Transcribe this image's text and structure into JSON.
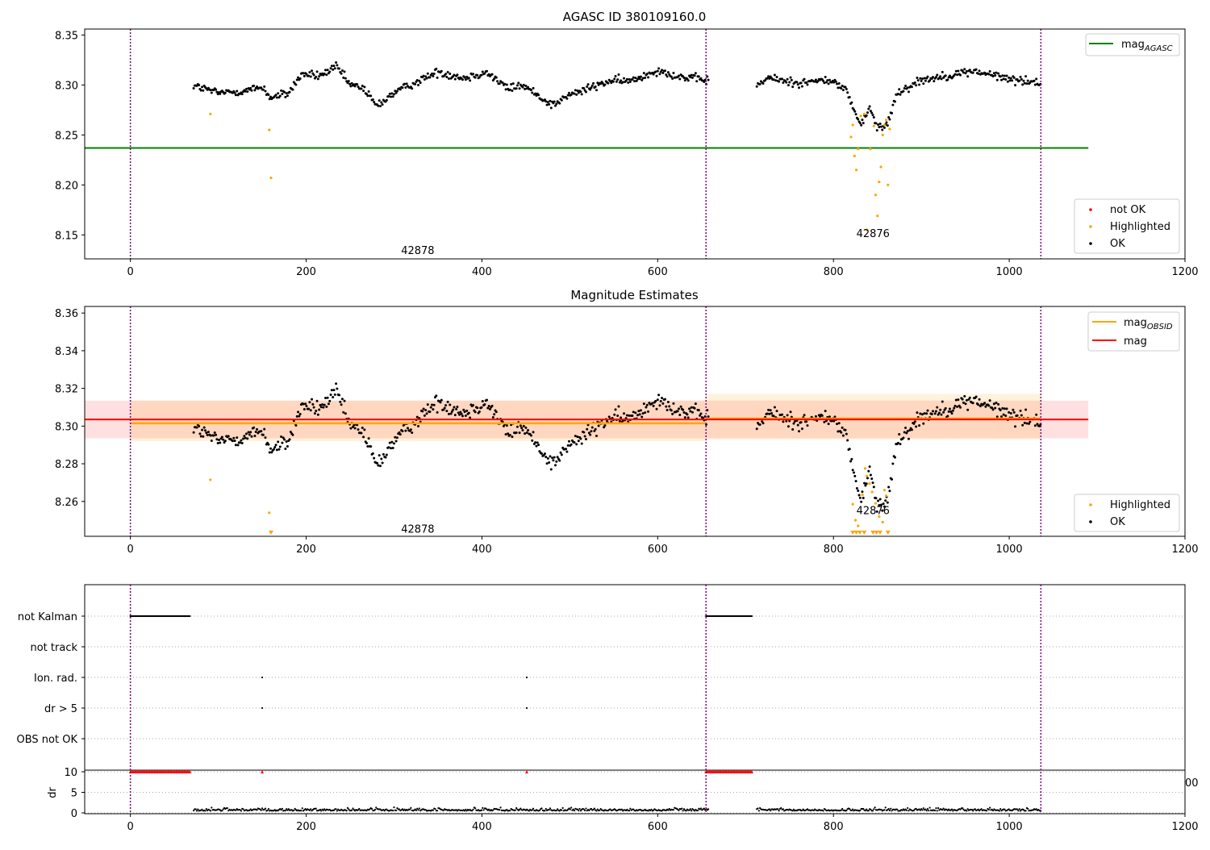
{
  "chart_data": [
    {
      "type": "scatter",
      "title": "AGASC ID 380109160.0",
      "xlim": [
        -52,
        1200
      ],
      "ylim": [
        8.126,
        8.356
      ],
      "xticks": [
        0,
        200,
        400,
        600,
        800,
        1000,
        1200
      ],
      "yticks": [
        8.15,
        8.2,
        8.25,
        8.3,
        8.35
      ],
      "ytick_labels": [
        "8.15",
        "8.20",
        "8.25",
        "8.30",
        "8.35"
      ],
      "obs_boundaries": [
        0,
        655,
        1036
      ],
      "obs_labels": [
        {
          "text": "42878",
          "x": 327,
          "y": 8.135
        },
        {
          "text": "42876",
          "x": 845,
          "y": 8.152
        }
      ],
      "hlines": [
        {
          "name": "mag_AGASC",
          "y": 8.237,
          "x0": -52,
          "x1": 1090,
          "color": "#008000"
        }
      ],
      "legend_top": [
        {
          "label": "mag",
          "sub": "AGASC",
          "color": "#008000"
        }
      ],
      "legend_bottom": [
        {
          "label": "not OK",
          "color": "#ff0000"
        },
        {
          "label": "Highlighted",
          "color": "#ffa500"
        },
        {
          "label": "OK",
          "color": "#000000"
        }
      ],
      "highlighted": [
        [
          91,
          8.271
        ],
        [
          158,
          8.255
        ],
        [
          160,
          8.207
        ],
        [
          820,
          8.248
        ],
        [
          822,
          8.26
        ],
        [
          824,
          8.229
        ],
        [
          826,
          8.215
        ],
        [
          828,
          8.236
        ],
        [
          831,
          8.269
        ],
        [
          835,
          8.271
        ],
        [
          838,
          8.155
        ],
        [
          842,
          8.236
        ],
        [
          846,
          8.259
        ],
        [
          848,
          8.19
        ],
        [
          850,
          8.169
        ],
        [
          852,
          8.203
        ],
        [
          854,
          8.218
        ],
        [
          856,
          8.25
        ],
        [
          858,
          8.26
        ],
        [
          860,
          8.265
        ],
        [
          862,
          8.2
        ],
        [
          864,
          8.256
        ]
      ]
    },
    {
      "type": "scatter",
      "title": "Magnitude Estimates",
      "xlim": [
        -52,
        1200
      ],
      "ylim": [
        8.2415,
        8.3635
      ],
      "xticks": [
        0,
        200,
        400,
        600,
        800,
        1000,
        1200
      ],
      "yticks": [
        8.26,
        8.28,
        8.3,
        8.32,
        8.34,
        8.36
      ],
      "ytick_labels": [
        "8.26",
        "8.28",
        "8.30",
        "8.32",
        "8.34",
        "8.36"
      ],
      "obs_boundaries": [
        0,
        655,
        1036
      ],
      "obs_labels": [
        {
          "text": "42878",
          "x": 327,
          "y": 8.2455
        },
        {
          "text": "42876",
          "x": 845,
          "y": 8.2555
        }
      ],
      "mag": {
        "value": 8.3035,
        "band": [
          8.2935,
          8.3135
        ],
        "color": "#ff0000"
      },
      "mag_obsid": [
        {
          "x0": 0,
          "x1": 655,
          "value": 8.3015,
          "band": [
            8.292,
            8.3135
          ]
        },
        {
          "x0": 655,
          "x1": 1036,
          "value": 8.304,
          "band": [
            8.293,
            8.317
          ]
        }
      ],
      "legend_top": [
        {
          "label": "mag",
          "sub": "OBSID",
          "color": "#ffa500"
        },
        {
          "label": "mag",
          "sub": "",
          "color": "#ff0000"
        }
      ],
      "legend_bottom": [
        {
          "label": "Highlighted",
          "color": "#ffa500"
        },
        {
          "label": "OK",
          "color": "#000000"
        }
      ],
      "highlighted": [
        [
          91,
          8.2715
        ],
        [
          158,
          8.254
        ],
        [
          822,
          8.2585
        ],
        [
          825,
          8.25
        ],
        [
          828,
          8.247
        ],
        [
          833,
          8.2635
        ],
        [
          836,
          8.2775
        ],
        [
          838,
          8.2735
        ],
        [
          841,
          8.2695
        ],
        [
          844,
          8.265
        ],
        [
          848,
          8.259
        ],
        [
          852,
          8.252
        ],
        [
          856,
          8.249
        ],
        [
          858,
          8.266
        ],
        [
          860,
          8.263
        ]
      ],
      "clipped_low": [
        160,
        822,
        826,
        830,
        835,
        845,
        849,
        853,
        862
      ]
    },
    {
      "type": "scatter",
      "title": "",
      "xlim": [
        -52,
        1200
      ],
      "xticks": [
        0,
        200,
        400,
        600,
        800,
        1000,
        1200
      ],
      "obs_boundaries": [
        0,
        655,
        1036
      ],
      "flag_labels": [
        "not Kalman",
        "not track",
        "Ion. rad.",
        "dr > 5",
        "OBS not OK"
      ],
      "flag_points": {
        "not Kalman": [
          [
            0,
            68
          ],
          [
            655,
            708
          ]
        ],
        "not track": [],
        "Ion. rad.": [
          150,
          451
        ],
        "dr > 5": [
          150,
          451
        ],
        "OBS not OK": []
      },
      "dr": {
        "ylabel": "dr",
        "yticks": [
          0,
          5,
          10
        ],
        "overflow_at": 10,
        "overflow_ranges": [
          [
            0,
            68
          ],
          [
            655,
            708
          ]
        ],
        "overflow_points": [
          150,
          451
        ],
        "stray_tick_label": "00"
      }
    }
  ]
}
